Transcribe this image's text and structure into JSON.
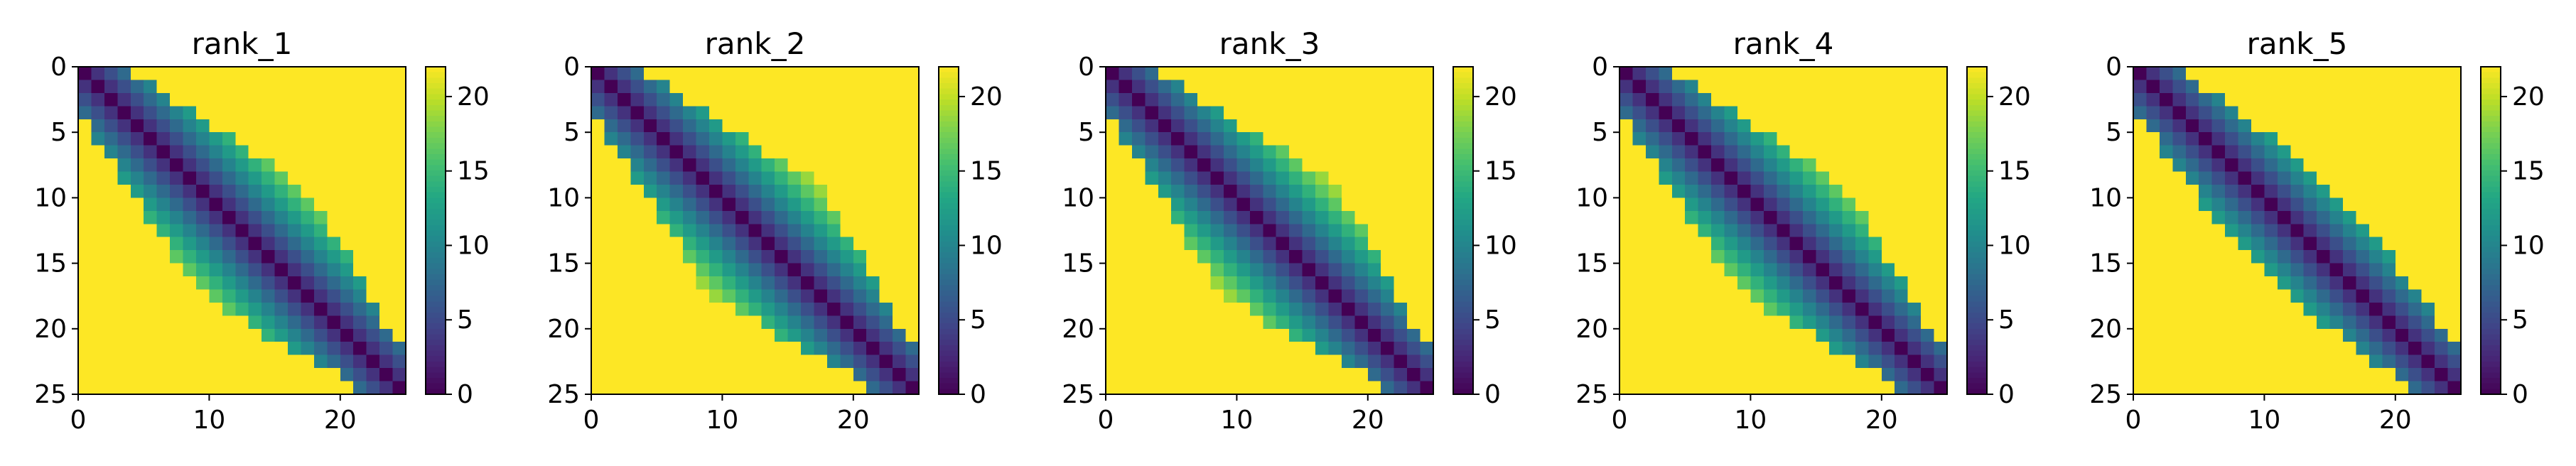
{
  "figure": {
    "panels": [
      {
        "title": "rank_1"
      },
      {
        "title": "rank_2"
      },
      {
        "title": "rank_3"
      },
      {
        "title": "rank_4"
      },
      {
        "title": "rank_5"
      }
    ]
  },
  "chart_data": [
    {
      "type": "heatmap",
      "title": "rank_1",
      "size": 25,
      "x_ticks": [
        0,
        10,
        20
      ],
      "y_ticks": [
        0,
        5,
        10,
        15,
        20,
        25
      ],
      "xlim": [
        0,
        25
      ],
      "ylim": [
        25,
        0
      ],
      "colorbar": {
        "colormap": "viridis",
        "range": [
          0,
          22
        ],
        "ticks": [
          0,
          5,
          10,
          15,
          20
        ]
      },
      "description_values": "distance-like matrix: 0 on diagonal, increasing with |i-j|, saturating at 22 outside a band",
      "band_halfwidth_by_row": [
        3,
        4,
        4,
        5,
        5,
        6,
        6,
        7,
        7,
        8,
        8,
        9,
        9,
        9,
        9,
        8,
        8,
        7,
        7,
        6,
        6,
        5,
        4,
        3,
        3
      ]
    },
    {
      "type": "heatmap",
      "title": "rank_2",
      "size": 25,
      "x_ticks": [
        0,
        10,
        20
      ],
      "y_ticks": [
        0,
        5,
        10,
        15,
        20,
        25
      ],
      "xlim": [
        0,
        25
      ],
      "ylim": [
        25,
        0
      ],
      "colorbar": {
        "colormap": "viridis",
        "range": [
          0,
          22
        ],
        "ticks": [
          0,
          5,
          10,
          15,
          20
        ]
      },
      "band_halfwidth_by_row": [
        3,
        4,
        4,
        5,
        5,
        6,
        6,
        7,
        8,
        8,
        9,
        9,
        9,
        9,
        9,
        9,
        8,
        8,
        7,
        6,
        6,
        5,
        4,
        3,
        3
      ]
    },
    {
      "type": "heatmap",
      "title": "rank_3",
      "size": 25,
      "x_ticks": [
        0,
        10,
        20
      ],
      "y_ticks": [
        0,
        5,
        10,
        15,
        20,
        25
      ],
      "xlim": [
        0,
        25
      ],
      "ylim": [
        25,
        0
      ],
      "colorbar": {
        "colormap": "viridis",
        "range": [
          0,
          22
        ],
        "ticks": [
          0,
          5,
          10,
          15,
          20
        ]
      },
      "band_halfwidth_by_row": [
        3,
        4,
        4,
        5,
        5,
        6,
        7,
        7,
        8,
        8,
        9,
        9,
        10,
        10,
        9,
        9,
        8,
        8,
        7,
        7,
        6,
        5,
        4,
        3,
        3
      ]
    },
    {
      "type": "heatmap",
      "title": "rank_4",
      "size": 25,
      "x_ticks": [
        0,
        10,
        20
      ],
      "y_ticks": [
        0,
        5,
        10,
        15,
        20,
        25
      ],
      "xlim": [
        0,
        25
      ],
      "ylim": [
        25,
        0
      ],
      "colorbar": {
        "colormap": "viridis",
        "range": [
          0,
          22
        ],
        "ticks": [
          0,
          5,
          10,
          15,
          20
        ]
      },
      "band_halfwidth_by_row": [
        3,
        4,
        4,
        5,
        5,
        6,
        6,
        7,
        7,
        8,
        8,
        9,
        9,
        9,
        8,
        8,
        8,
        7,
        7,
        6,
        5,
        5,
        4,
        3,
        3
      ]
    },
    {
      "type": "heatmap",
      "title": "rank_5",
      "size": 25,
      "x_ticks": [
        0,
        10,
        20
      ],
      "y_ticks": [
        0,
        5,
        10,
        15,
        20,
        25
      ],
      "xlim": [
        0,
        25
      ],
      "ylim": [
        25,
        0
      ],
      "colorbar": {
        "colormap": "viridis",
        "range": [
          0,
          22
        ],
        "ticks": [
          0,
          5,
          10,
          15,
          20
        ]
      },
      "band_halfwidth_by_row": [
        3,
        3,
        4,
        4,
        4,
        5,
        5,
        5,
        5,
        5,
        5,
        5,
        5,
        5,
        5,
        5,
        5,
        5,
        5,
        5,
        4,
        4,
        4,
        3,
        3
      ]
    }
  ]
}
